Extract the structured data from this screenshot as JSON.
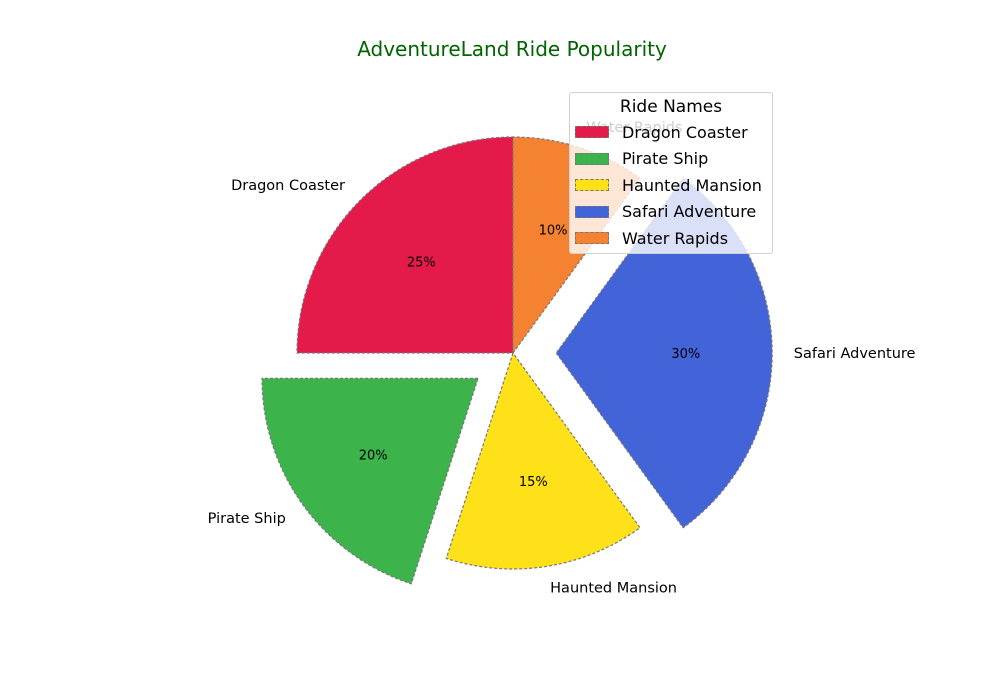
{
  "chart_data": {
    "type": "pie",
    "title": "AdventureLand Ride Popularity",
    "title_color": "#006400",
    "labels": [
      "Dragon Coaster",
      "Pirate Ship",
      "Haunted Mansion",
      "Safari Adventure",
      "Water Rapids"
    ],
    "values": [
      25,
      20,
      15,
      30,
      10
    ],
    "value_labels": [
      "25%",
      "20%",
      "15%",
      "30%",
      "10%"
    ],
    "colors": [
      "#e31a4a",
      "#3cb44b",
      "#ffe119",
      "#4363d8",
      "#f58231"
    ],
    "explode": [
      0,
      0.2,
      0,
      0.2,
      0
    ],
    "legend": {
      "title": "Ride Names",
      "placement": "upper-right",
      "entries": [
        "Dragon Coaster",
        "Pirate Ship",
        "Haunted Mansion",
        "Safari Adventure",
        "Water Rapids"
      ]
    },
    "edge_style": "dashed",
    "edge_color": "#777777"
  }
}
